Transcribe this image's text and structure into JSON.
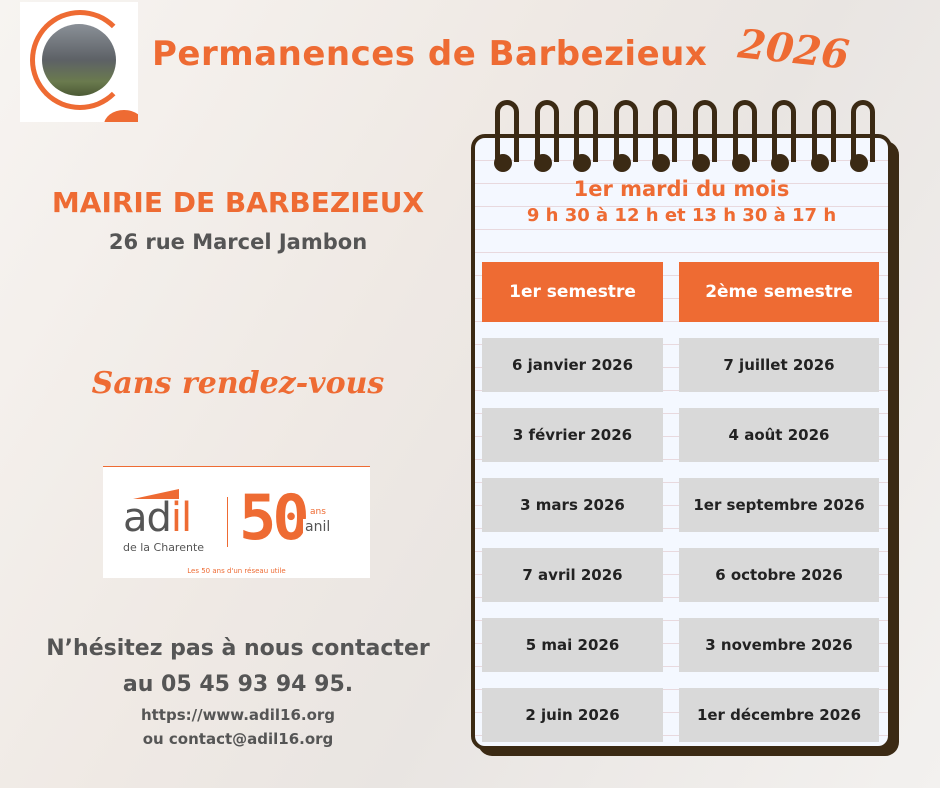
{
  "header": {
    "title": "Permanences de Barbezieux",
    "year": "2026"
  },
  "location": {
    "name": "MAIRIE DE BARBEZIEUX",
    "address": "26 rue Marcel Jambon",
    "note": "Sans rendez-vous"
  },
  "logo": {
    "brand": "adil",
    "subtitle": "de la Charente",
    "anniversary": "50",
    "ans": "ans",
    "anil": "anil",
    "tagline": "Les 50 ans d'un réseau utile"
  },
  "contact": {
    "line1": "N’hésitez pas à nous contacter",
    "line2": "au 05 45 93 94 95.",
    "url": "https://www.adil16.org",
    "email": "ou contact@adil16.org"
  },
  "schedule": {
    "frequency": "1er mardi du mois",
    "hours": "9 h 30 à 12 h et 13 h 30 à 17 h",
    "columns": [
      "1er semestre",
      "2ème semestre"
    ],
    "rows": [
      [
        "6 janvier 2026",
        "7 juillet 2026"
      ],
      [
        "3 février 2026",
        "4 août 2026"
      ],
      [
        "3 mars 2026",
        "1er septembre 2026"
      ],
      [
        "7 avril 2026",
        "6 octobre 2026"
      ],
      [
        "5 mai 2026",
        "3 novembre 2026"
      ],
      [
        "2 juin 2026",
        "1er décembre 2026"
      ]
    ]
  },
  "colors": {
    "accent": "#ee6b33",
    "ring": "#3b2a14",
    "cell": "#d9d9d9"
  }
}
